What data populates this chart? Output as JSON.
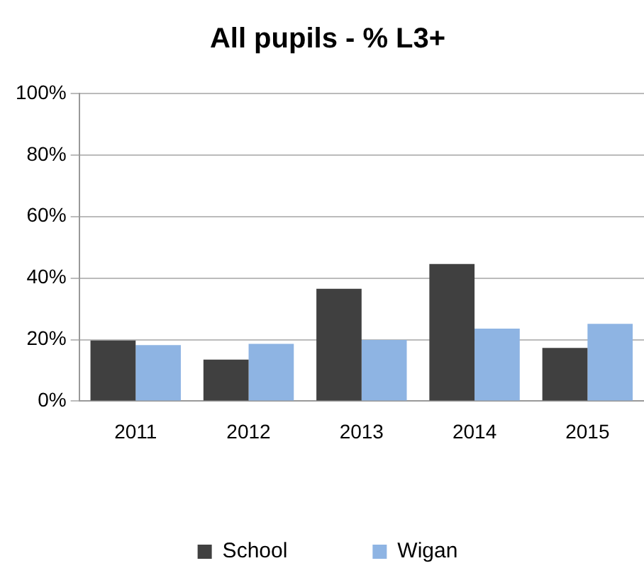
{
  "chart_data": {
    "type": "bar",
    "title": "All pupils - % L3+",
    "categories": [
      "2011",
      "2012",
      "2013",
      "2014",
      "2015"
    ],
    "series": [
      {
        "name": "School",
        "color": "#404040",
        "values": [
          19.7,
          13.5,
          36.5,
          44.6,
          17.3
        ]
      },
      {
        "name": "Wigan",
        "color": "#8eb4e3",
        "values": [
          18.2,
          18.6,
          19.9,
          23.6,
          25.1
        ]
      }
    ],
    "ylim": [
      0,
      100
    ],
    "yticks": [
      {
        "value": 0,
        "label": "0%"
      },
      {
        "value": 20,
        "label": "20%"
      },
      {
        "value": 40,
        "label": "40%"
      },
      {
        "value": 60,
        "label": "60%"
      },
      {
        "value": 80,
        "label": "80%"
      },
      {
        "value": 100,
        "label": "100%"
      }
    ],
    "grid": "y",
    "legend": "bottom"
  }
}
